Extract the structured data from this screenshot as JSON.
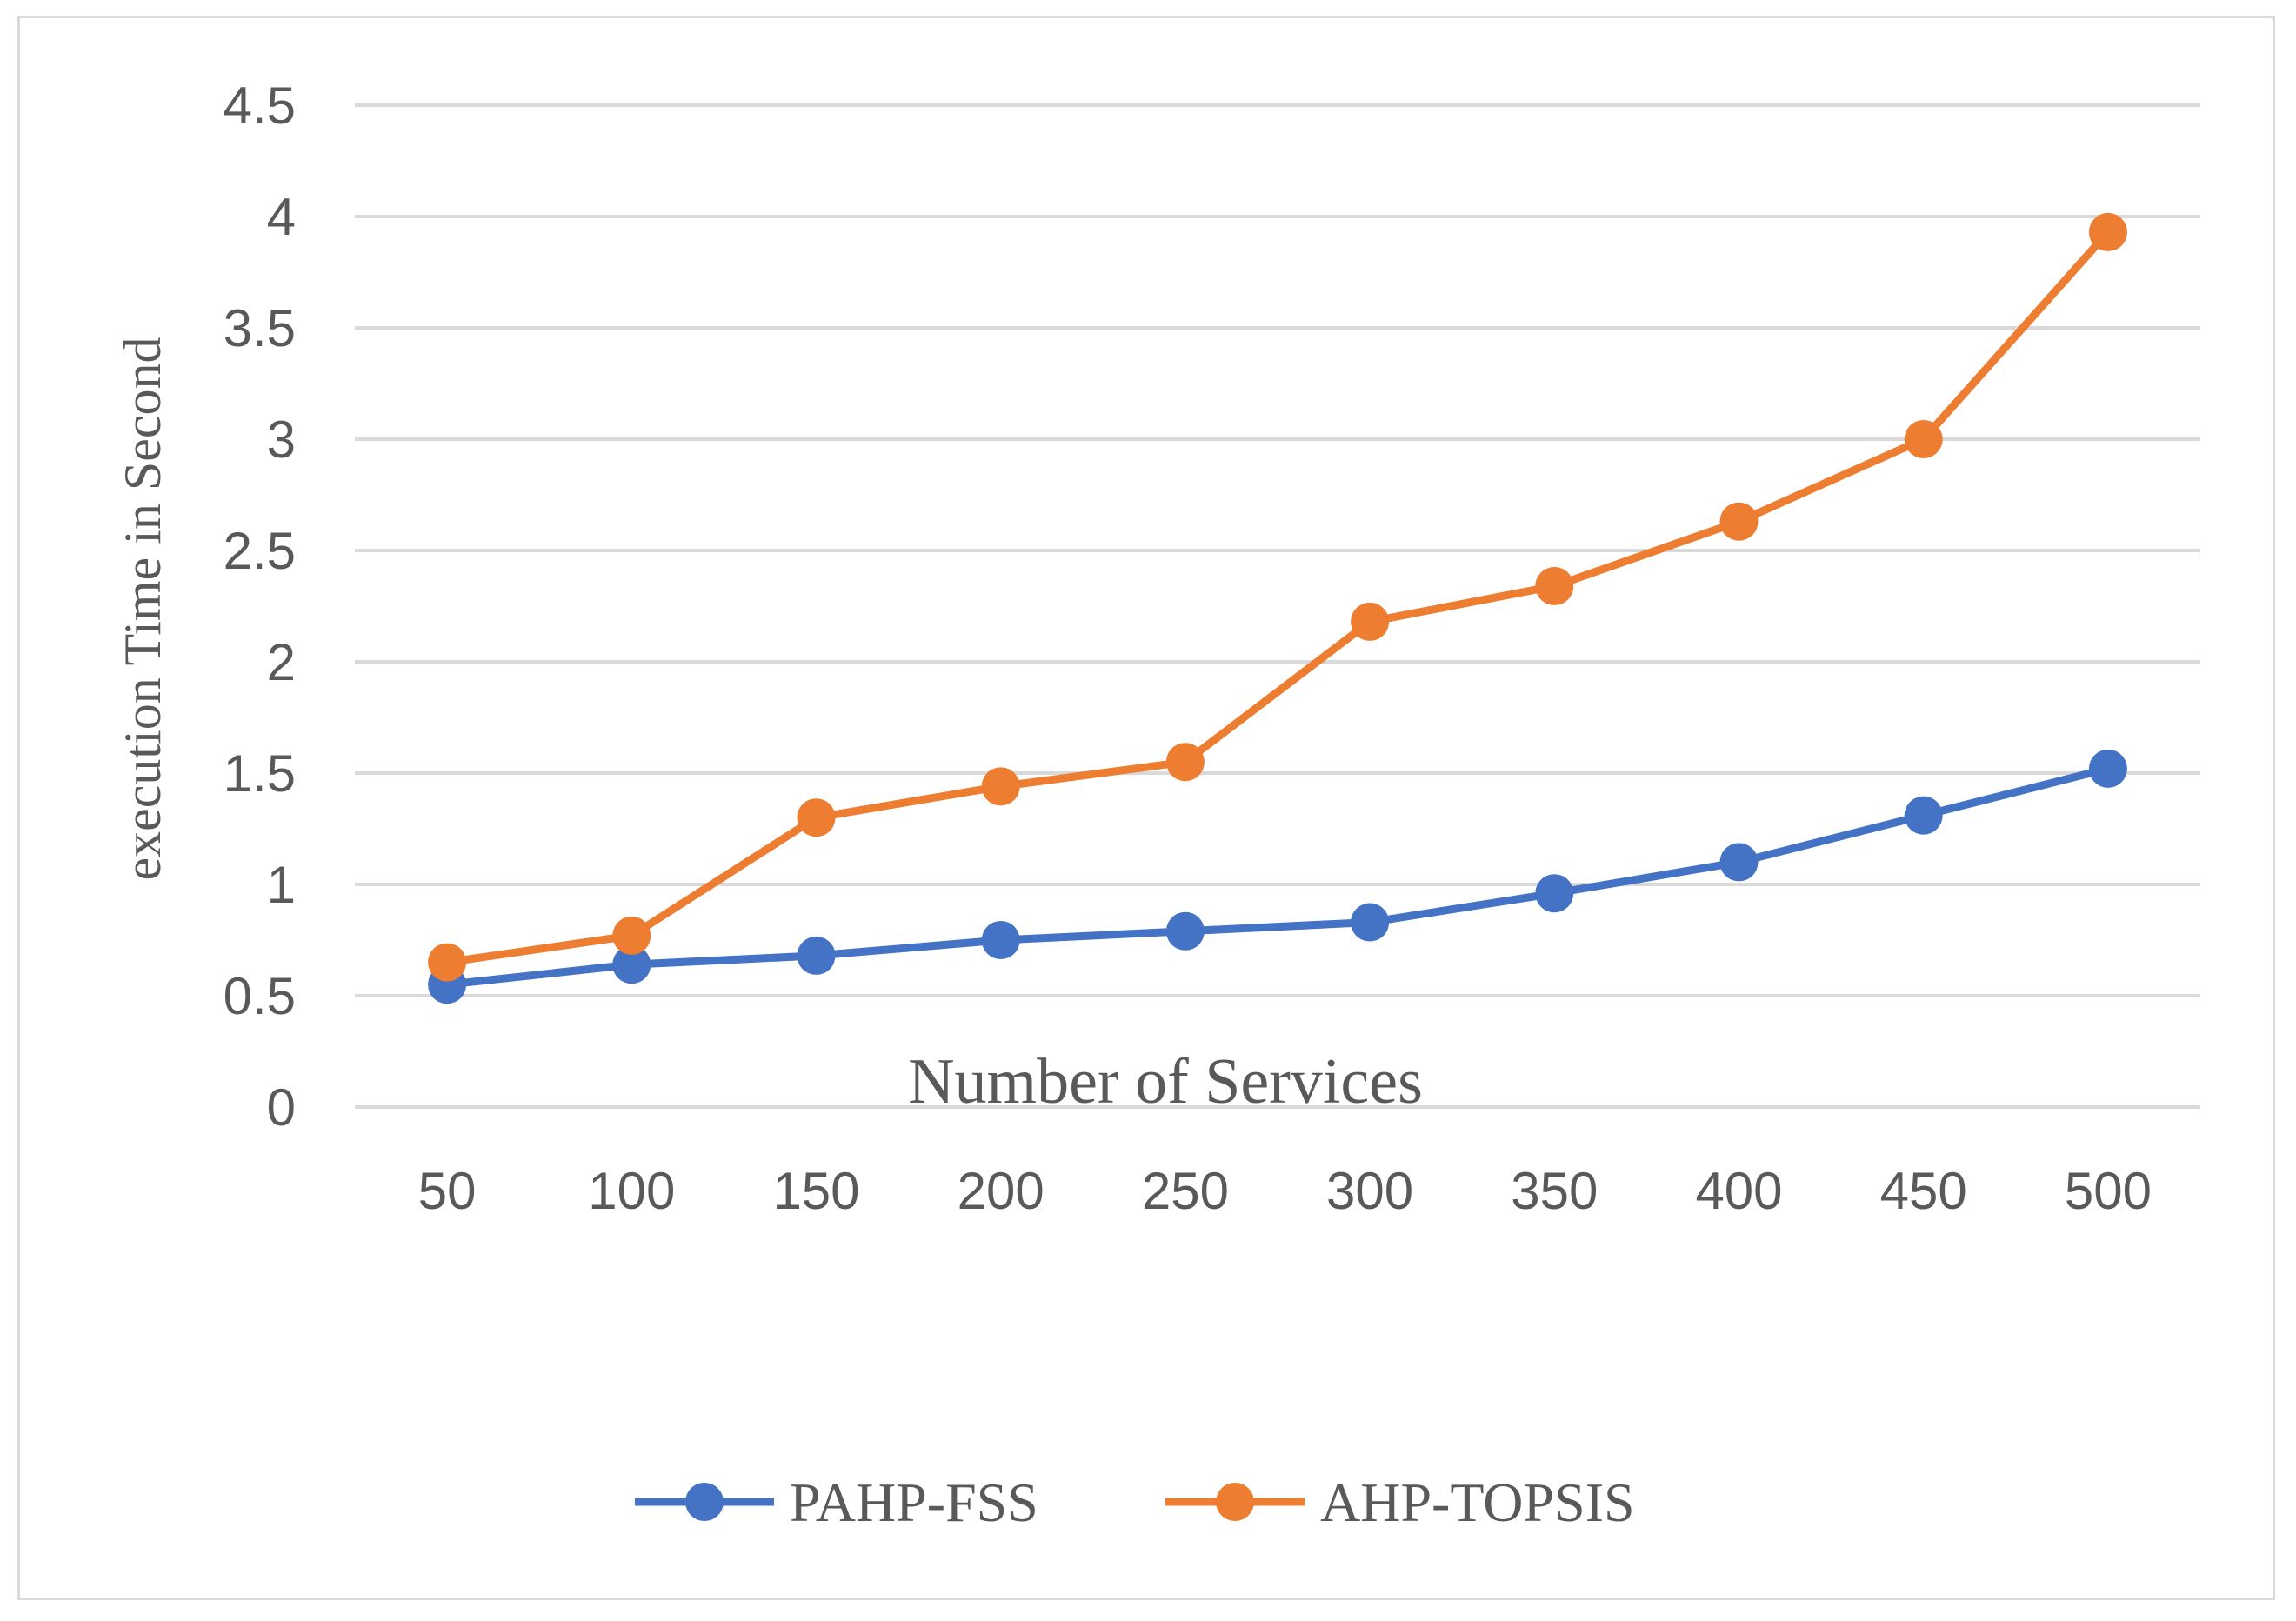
{
  "chart_data": {
    "type": "line",
    "title": "",
    "xlabel": "Number of Services",
    "ylabel": "execution Time in Second",
    "categories": [
      "50",
      "100",
      "150",
      "200",
      "250",
      "300",
      "350",
      "400",
      "450",
      "500"
    ],
    "y_ticks": [
      "0",
      "0.5",
      "1",
      "1.5",
      "2",
      "2.5",
      "3",
      "3.5",
      "4",
      "4.5"
    ],
    "ylim": [
      0,
      4.5
    ],
    "grid": true,
    "legend_position": "bottom",
    "series": [
      {
        "name": "PAHP-FSS",
        "color": "#4472c4",
        "values": [
          0.55,
          0.64,
          0.68,
          0.75,
          0.79,
          0.83,
          0.96,
          1.1,
          1.31,
          1.52
        ]
      },
      {
        "name": "AHP-TOPSIS",
        "color": "#ed7d31",
        "values": [
          0.65,
          0.77,
          1.3,
          1.44,
          1.55,
          2.18,
          2.34,
          2.63,
          3.0,
          3.93
        ]
      }
    ]
  }
}
